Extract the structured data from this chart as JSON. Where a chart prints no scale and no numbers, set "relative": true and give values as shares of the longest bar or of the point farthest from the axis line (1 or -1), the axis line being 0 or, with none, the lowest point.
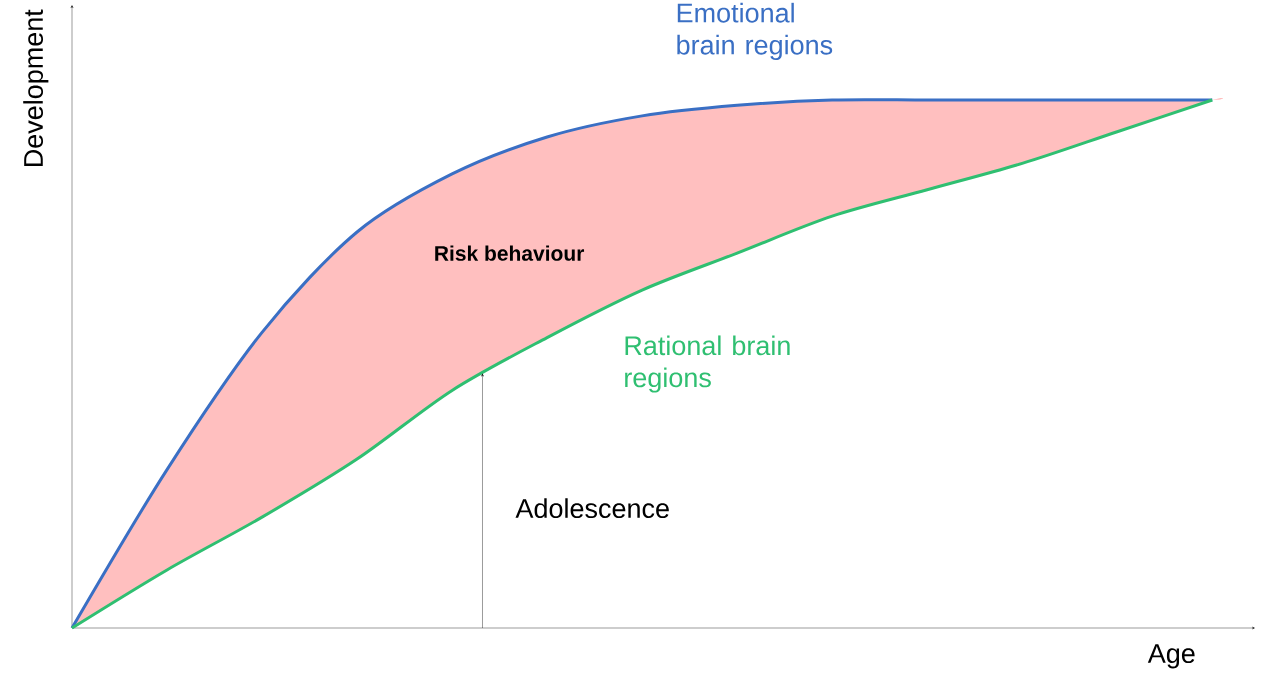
{
  "chart_data": {
    "type": "line",
    "relative": true,
    "xlabel": "Age",
    "ylabel": "Development",
    "categories": [
      null,
      null,
      null,
      null,
      null,
      null,
      null,
      null,
      null,
      null,
      null,
      null,
      null
    ],
    "series": [
      {
        "name": "Emotional brain regions",
        "color": "#3a6fc4",
        "values": [
          0,
          0.3,
          0.56,
          0.75,
          0.86,
          0.93,
          0.97,
          0.99,
          1,
          1,
          1,
          1,
          1
        ],
        "lower": [
          0,
          0.11,
          0.21,
          0.32,
          0.45,
          0.55,
          0.64,
          0.71,
          0.78,
          0.83,
          0.88,
          0.94,
          1
        ],
        "upper": [
          0,
          0.3,
          0.56,
          0.75,
          0.86,
          0.93,
          0.97,
          0.99,
          1,
          1,
          1,
          1,
          1
        ]
      },
      {
        "name": "Rational brain regions",
        "color": "#2fbf71",
        "values": [
          0,
          0.11,
          0.21,
          0.32,
          0.45,
          0.55,
          0.64,
          0.71,
          0.78,
          0.83,
          0.88,
          0.94,
          1
        ]
      }
    ],
    "annotations": [
      "**Risk behaviour**",
      "Adolescence"
    ]
  }
}
